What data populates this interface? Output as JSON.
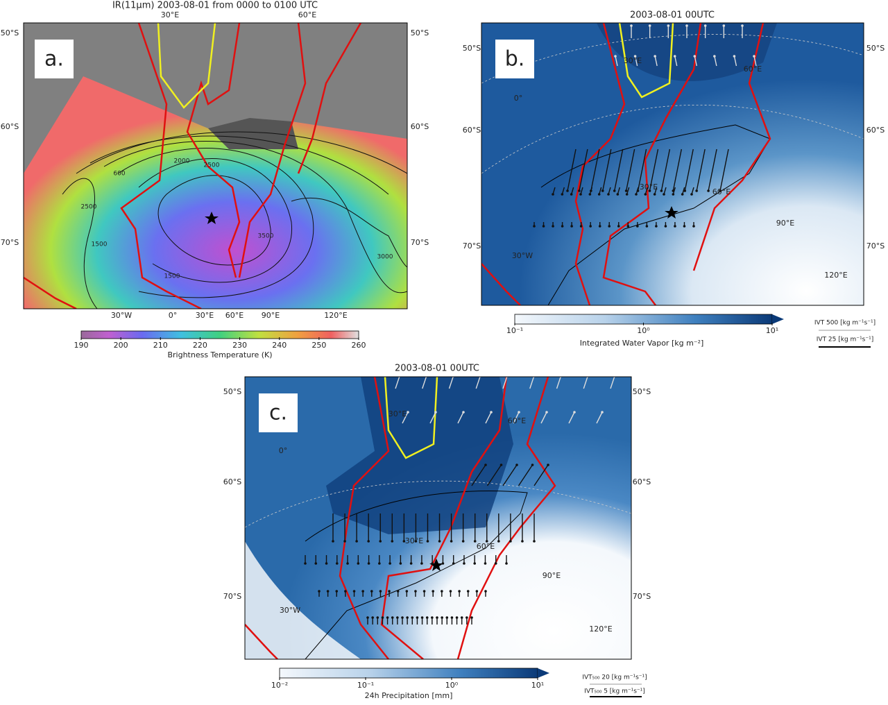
{
  "panels": [
    {
      "label": "a.",
      "title": "IR(11μm)  2003-08-01 from 0000 to 0100 UTC",
      "map_labels": [
        "50°S",
        "60°S",
        "70°S",
        "50°S",
        "60°S",
        "70°S",
        "30°E",
        "60°E",
        "30°W",
        "0°",
        "30°E",
        "60°E",
        "90°E",
        "120°E"
      ],
      "contour_labels": [
        "2000",
        "2500",
        "600",
        "2500",
        "1500",
        "1500",
        "3500",
        "3000"
      ],
      "colorbar": {
        "label": "Brightness Temperature (K)",
        "ticks": [
          190,
          200,
          210,
          220,
          230,
          240,
          250,
          260
        ]
      }
    },
    {
      "label": "b.",
      "title": "2003-08-01 00UTC",
      "map_labels": [
        "50°S",
        "60°S",
        "70°S",
        "50°S",
        "60°S",
        "70°S",
        "30°E",
        "60°E",
        "0°",
        "30°E",
        "60°E",
        "90°E",
        "30°W",
        "120°E"
      ],
      "colorbar": {
        "label": "Integrated Water Vapor [kg m⁻²]",
        "ticks": [
          "10⁻¹",
          "10⁰",
          "10¹"
        ]
      },
      "legend": [
        "IVT 500 [kg m⁻¹s⁻¹]",
        "IVT 25 [kg m⁻¹s⁻¹]"
      ]
    },
    {
      "label": "c.",
      "title": "2003-08-01 00UTC",
      "map_labels": [
        "50°S",
        "60°S",
        "70°S",
        "50°S",
        "60°S",
        "70°S",
        "30°E",
        "60°E",
        "0°",
        "30°E",
        "60°E",
        "90°E",
        "30°W",
        "120°E"
      ],
      "colorbar": {
        "label": "24h Precipitation [mm]",
        "ticks": [
          "10⁻²",
          "10⁻¹",
          "10⁰",
          "10¹"
        ]
      },
      "legend": [
        "IVT₅₀₀ 20 [kg m⁻¹s⁻¹]",
        "IVT₅₀₀ 5 [kg m⁻¹s⁻¹]"
      ]
    }
  ]
}
